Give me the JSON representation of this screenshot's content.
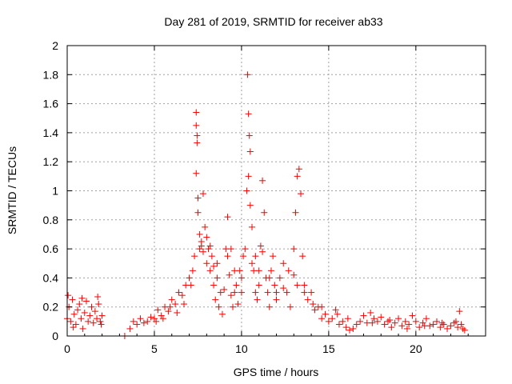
{
  "chart_data": {
    "type": "scatter",
    "title": "Day 281 of 2019, SRMTID for receiver ab33",
    "xlabel": "GPS time / hours",
    "ylabel": "SRMTID / TECUs",
    "xlim": [
      0,
      24
    ],
    "ylim": [
      0,
      2
    ],
    "xticks": [
      0,
      5,
      10,
      15,
      20
    ],
    "yticks": [
      0,
      0.2,
      0.4,
      0.6,
      0.8,
      1,
      1.2,
      1.4,
      1.6,
      1.8,
      2
    ],
    "xtick_labels": [
      "0",
      "5",
      "10",
      "15",
      "20"
    ],
    "ytick_labels": [
      "0",
      "0.2",
      "0.4",
      "0.6",
      "0.8",
      "1",
      "1.2",
      "1.4",
      "1.6",
      "1.8",
      "2"
    ],
    "grid": true,
    "marker": "plus",
    "color": "#ff0000",
    "series": [
      {
        "name": "SRMTID",
        "points": [
          [
            0.0,
            0.12
          ],
          [
            0.1,
            0.2
          ],
          [
            0.2,
            0.1
          ],
          [
            0.3,
            0.25
          ],
          [
            0.4,
            0.15
          ],
          [
            0.5,
            0.08
          ],
          [
            0.6,
            0.18
          ],
          [
            0.7,
            0.22
          ],
          [
            0.8,
            0.12
          ],
          [
            0.9,
            0.05
          ],
          [
            1.0,
            0.16
          ],
          [
            1.1,
            0.24
          ],
          [
            1.2,
            0.1
          ],
          [
            1.3,
            0.14
          ],
          [
            1.4,
            0.2
          ],
          [
            1.5,
            0.09
          ],
          [
            1.6,
            0.17
          ],
          [
            1.7,
            0.12
          ],
          [
            1.8,
            0.22
          ],
          [
            1.9,
            0.1
          ],
          [
            2.0,
            0.14
          ],
          [
            0.05,
            0.28
          ],
          [
            0.35,
            0.06
          ],
          [
            0.85,
            0.26
          ],
          [
            1.75,
            0.27
          ],
          [
            1.95,
            0.08
          ],
          [
            3.3,
            0.0
          ],
          [
            3.6,
            0.05
          ],
          [
            3.8,
            0.1
          ],
          [
            4.0,
            0.08
          ],
          [
            4.2,
            0.12
          ],
          [
            4.4,
            0.09
          ],
          [
            4.6,
            0.1
          ],
          [
            4.8,
            0.13
          ],
          [
            5.0,
            0.12
          ],
          [
            5.2,
            0.18
          ],
          [
            5.4,
            0.14
          ],
          [
            5.6,
            0.2
          ],
          [
            5.8,
            0.17
          ],
          [
            6.0,
            0.25
          ],
          [
            6.2,
            0.22
          ],
          [
            6.4,
            0.3
          ],
          [
            6.6,
            0.28
          ],
          [
            6.8,
            0.35
          ],
          [
            7.0,
            0.4
          ],
          [
            7.2,
            0.45
          ],
          [
            7.3,
            0.55
          ],
          [
            7.4,
            1.54
          ],
          [
            7.4,
            1.45
          ],
          [
            7.45,
            1.38
          ],
          [
            7.45,
            1.33
          ],
          [
            7.4,
            1.12
          ],
          [
            7.5,
            0.95
          ],
          [
            7.5,
            0.85
          ],
          [
            7.6,
            0.7
          ],
          [
            7.7,
            0.62
          ],
          [
            7.8,
            0.98
          ],
          [
            7.9,
            0.75
          ],
          [
            8.0,
            0.5
          ],
          [
            8.1,
            0.6
          ],
          [
            8.2,
            0.45
          ],
          [
            8.3,
            0.55
          ],
          [
            8.4,
            0.35
          ],
          [
            8.5,
            0.25
          ],
          [
            8.6,
            0.4
          ],
          [
            8.7,
            0.2
          ],
          [
            8.8,
            0.3
          ],
          [
            8.9,
            0.15
          ],
          [
            9.0,
            0.32
          ],
          [
            9.1,
            0.6
          ],
          [
            9.2,
            0.82
          ],
          [
            9.3,
            0.42
          ],
          [
            9.4,
            0.28
          ],
          [
            9.5,
            0.2
          ],
          [
            9.6,
            0.3
          ],
          [
            9.7,
            0.35
          ],
          [
            9.8,
            0.22
          ],
          [
            9.9,
            0.45
          ],
          [
            10.0,
            0.3
          ],
          [
            10.1,
            0.55
          ],
          [
            10.2,
            0.6
          ],
          [
            10.3,
            1.0
          ],
          [
            10.35,
            1.8
          ],
          [
            10.4,
            1.53
          ],
          [
            10.45,
            1.38
          ],
          [
            10.5,
            1.27
          ],
          [
            10.4,
            1.1
          ],
          [
            10.5,
            0.9
          ],
          [
            10.6,
            0.75
          ],
          [
            10.7,
            0.45
          ],
          [
            10.8,
            0.3
          ],
          [
            10.9,
            0.25
          ],
          [
            11.0,
            0.35
          ],
          [
            11.1,
            0.62
          ],
          [
            11.2,
            1.07
          ],
          [
            11.3,
            0.85
          ],
          [
            11.4,
            0.4
          ],
          [
            11.5,
            0.3
          ],
          [
            11.6,
            0.2
          ],
          [
            11.7,
            0.45
          ],
          [
            11.8,
            0.55
          ],
          [
            11.9,
            0.35
          ],
          [
            12.0,
            0.25
          ],
          [
            12.2,
            0.4
          ],
          [
            12.4,
            0.5
          ],
          [
            12.6,
            0.3
          ],
          [
            12.8,
            0.2
          ],
          [
            13.0,
            0.6
          ],
          [
            13.1,
            0.85
          ],
          [
            13.2,
            1.1
          ],
          [
            13.3,
            1.15
          ],
          [
            13.4,
            0.98
          ],
          [
            13.5,
            0.55
          ],
          [
            13.6,
            0.35
          ],
          [
            13.8,
            0.25
          ],
          [
            14.0,
            0.3
          ],
          [
            14.2,
            0.18
          ],
          [
            14.4,
            0.2
          ],
          [
            14.6,
            0.12
          ],
          [
            14.8,
            0.15
          ],
          [
            15.0,
            0.1
          ],
          [
            15.2,
            0.12
          ],
          [
            15.4,
            0.18
          ],
          [
            15.6,
            0.08
          ],
          [
            15.8,
            0.1
          ],
          [
            16.0,
            0.06
          ],
          [
            16.2,
            0.04
          ],
          [
            16.4,
            0.05
          ],
          [
            16.6,
            0.08
          ],
          [
            16.8,
            0.1
          ],
          [
            17.0,
            0.14
          ],
          [
            17.2,
            0.09
          ],
          [
            17.4,
            0.16
          ],
          [
            17.6,
            0.12
          ],
          [
            17.8,
            0.1
          ],
          [
            18.0,
            0.13
          ],
          [
            18.2,
            0.08
          ],
          [
            18.4,
            0.1
          ],
          [
            18.6,
            0.06
          ],
          [
            18.8,
            0.09
          ],
          [
            19.0,
            0.12
          ],
          [
            19.2,
            0.07
          ],
          [
            19.4,
            0.1
          ],
          [
            19.6,
            0.08
          ],
          [
            19.8,
            0.14
          ],
          [
            20.0,
            0.1
          ],
          [
            20.2,
            0.06
          ],
          [
            20.4,
            0.09
          ],
          [
            20.6,
            0.12
          ],
          [
            20.8,
            0.07
          ],
          [
            21.0,
            0.08
          ],
          [
            21.2,
            0.1
          ],
          [
            21.4,
            0.06
          ],
          [
            21.6,
            0.08
          ],
          [
            21.8,
            0.05
          ],
          [
            22.0,
            0.07
          ],
          [
            22.2,
            0.09
          ],
          [
            22.4,
            0.06
          ],
          [
            22.5,
            0.17
          ],
          [
            22.6,
            0.08
          ],
          [
            22.7,
            0.05
          ],
          [
            22.8,
            0.04
          ],
          [
            5.1,
            0.1
          ],
          [
            5.5,
            0.12
          ],
          [
            5.9,
            0.2
          ],
          [
            6.3,
            0.16
          ],
          [
            6.7,
            0.22
          ],
          [
            7.1,
            0.35
          ],
          [
            7.6,
            0.6
          ],
          [
            7.7,
            0.65
          ],
          [
            7.8,
            0.58
          ],
          [
            8.0,
            0.68
          ],
          [
            8.2,
            0.62
          ],
          [
            8.4,
            0.48
          ],
          [
            8.6,
            0.5
          ],
          [
            9.2,
            0.55
          ],
          [
            9.4,
            0.6
          ],
          [
            9.6,
            0.45
          ],
          [
            10.0,
            0.4
          ],
          [
            10.6,
            0.5
          ],
          [
            10.8,
            0.55
          ],
          [
            11.0,
            0.45
          ],
          [
            11.2,
            0.58
          ],
          [
            11.6,
            0.4
          ],
          [
            12.0,
            0.3
          ],
          [
            12.4,
            0.33
          ],
          [
            12.7,
            0.45
          ],
          [
            13.0,
            0.42
          ],
          [
            13.2,
            0.35
          ],
          [
            13.6,
            0.3
          ],
          [
            14.1,
            0.22
          ],
          [
            14.6,
            0.2
          ],
          [
            15.5,
            0.15
          ],
          [
            16.1,
            0.12
          ],
          [
            17.5,
            0.09
          ],
          [
            18.5,
            0.11
          ],
          [
            19.5,
            0.05
          ],
          [
            20.5,
            0.07
          ],
          [
            21.5,
            0.09
          ],
          [
            22.3,
            0.1
          ]
        ]
      }
    ]
  }
}
